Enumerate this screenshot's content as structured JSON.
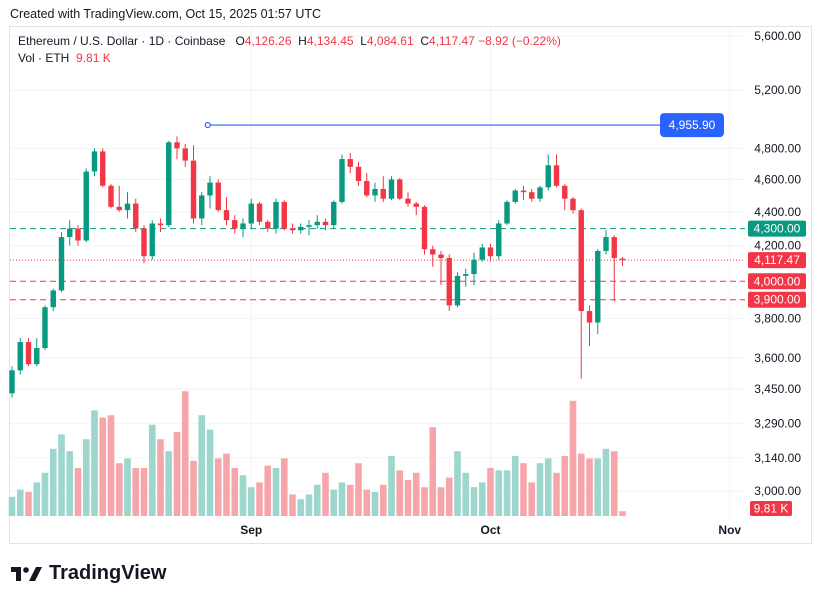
{
  "caption": "Created with TradingView.com, Oct 15, 2025 01:57 UTC",
  "brand": {
    "name": "TradingView"
  },
  "colors": {
    "up": "#089981",
    "down": "#f23645",
    "up_volume": "#9dd6cd",
    "down_volume": "#f6a6ab",
    "line_tool": "#2962ff",
    "grid": "#f0f3fa"
  },
  "legend": {
    "symbol": "Ethereum / U.S. Dollar · 1D · Coinbase",
    "o_label": "O",
    "o_value": "4,126.26",
    "h_label": "H",
    "h_value": "4,134.45",
    "l_label": "L",
    "l_value": "4,084.61",
    "c_label": "C",
    "c_value": "4,117.47",
    "change": "−8.92 (−0.22%)",
    "vol_label": "Vol · ETH",
    "vol_value": "9.81 K"
  },
  "chart_data": {
    "type": "candlestick",
    "x_tick_labels": [
      "Sep",
      "Oct",
      "Nov"
    ],
    "y_tick_labels": [
      "5,600.00",
      "5,200.00",
      "4,800.00",
      "4,600.00",
      "4,400.00",
      "4,200.00",
      "3,800.00",
      "3,600.00",
      "3,450.00",
      "3,290.00",
      "3,140.00",
      "3,000.00"
    ],
    "y_scale": "log",
    "ylim": [
      2960,
      5660
    ],
    "grid": true,
    "ohlc": [
      [
        3430,
        3560,
        3410,
        3540
      ],
      [
        3540,
        3700,
        3520,
        3680
      ],
      [
        3680,
        3700,
        3560,
        3570
      ],
      [
        3570,
        3700,
        3560,
        3650
      ],
      [
        3650,
        3870,
        3640,
        3860
      ],
      [
        3860,
        3960,
        3840,
        3950
      ],
      [
        3950,
        4280,
        3940,
        4250
      ],
      [
        4250,
        4350,
        4200,
        4300
      ],
      [
        4300,
        4320,
        4200,
        4230
      ],
      [
        4230,
        4670,
        4220,
        4650
      ],
      [
        4650,
        4800,
        4620,
        4780
      ],
      [
        4780,
        4800,
        4550,
        4560
      ],
      [
        4560,
        4570,
        4420,
        4430
      ],
      [
        4430,
        4560,
        4400,
        4410
      ],
      [
        4410,
        4520,
        4360,
        4450
      ],
      [
        4450,
        4480,
        4280,
        4300
      ],
      [
        4300,
        4320,
        4100,
        4140
      ],
      [
        4140,
        4350,
        4120,
        4330
      ],
      [
        4330,
        4360,
        4280,
        4320
      ],
      [
        4320,
        4850,
        4310,
        4840
      ],
      [
        4840,
        4880,
        4730,
        4800
      ],
      [
        4800,
        4830,
        4680,
        4720
      ],
      [
        4720,
        4820,
        4330,
        4360
      ],
      [
        4360,
        4520,
        4320,
        4500
      ],
      [
        4500,
        4620,
        4420,
        4580
      ],
      [
        4580,
        4600,
        4400,
        4410
      ],
      [
        4410,
        4490,
        4320,
        4350
      ],
      [
        4350,
        4380,
        4270,
        4300
      ],
      [
        4300,
        4360,
        4250,
        4330
      ],
      [
        4330,
        4480,
        4300,
        4450
      ],
      [
        4450,
        4460,
        4320,
        4340
      ],
      [
        4340,
        4350,
        4280,
        4300
      ],
      [
        4300,
        4480,
        4270,
        4460
      ],
      [
        4460,
        4470,
        4290,
        4300
      ],
      [
        4300,
        4330,
        4270,
        4290
      ],
      [
        4290,
        4330,
        4270,
        4310
      ],
      [
        4310,
        4350,
        4260,
        4320
      ],
      [
        4320,
        4380,
        4300,
        4340
      ],
      [
        4340,
        4360,
        4290,
        4320
      ],
      [
        4320,
        4470,
        4300,
        4460
      ],
      [
        4460,
        4760,
        4450,
        4730
      ],
      [
        4730,
        4770,
        4640,
        4680
      ],
      [
        4680,
        4710,
        4560,
        4590
      ],
      [
        4590,
        4640,
        4490,
        4500
      ],
      [
        4500,
        4580,
        4460,
        4540
      ],
      [
        4540,
        4620,
        4460,
        4480
      ],
      [
        4480,
        4620,
        4470,
        4600
      ],
      [
        4600,
        4610,
        4470,
        4480
      ],
      [
        4480,
        4520,
        4430,
        4450
      ],
      [
        4450,
        4460,
        4380,
        4430
      ],
      [
        4430,
        4440,
        4150,
        4180
      ],
      [
        4180,
        4200,
        4080,
        4150
      ],
      [
        4150,
        4170,
        3980,
        4130
      ],
      [
        4130,
        4150,
        3840,
        3870
      ],
      [
        3870,
        4050,
        3860,
        4030
      ],
      [
        4030,
        4070,
        3970,
        4040
      ],
      [
        4040,
        4160,
        3980,
        4120
      ],
      [
        4120,
        4210,
        4110,
        4190
      ],
      [
        4190,
        4210,
        4110,
        4140
      ],
      [
        4140,
        4350,
        4120,
        4330
      ],
      [
        4330,
        4470,
        4320,
        4460
      ],
      [
        4460,
        4540,
        4450,
        4530
      ],
      [
        4530,
        4560,
        4470,
        4520
      ],
      [
        4520,
        4540,
        4460,
        4480
      ],
      [
        4480,
        4560,
        4460,
        4550
      ],
      [
        4550,
        4760,
        4530,
        4690
      ],
      [
        4690,
        4760,
        4550,
        4560
      ],
      [
        4560,
        4570,
        4410,
        4480
      ],
      [
        4480,
        4490,
        4390,
        4410
      ],
      [
        4410,
        4420,
        3500,
        3840
      ],
      [
        3840,
        3870,
        3660,
        3780
      ],
      [
        3780,
        4180,
        3720,
        4170
      ],
      [
        4170,
        4290,
        4150,
        4250
      ],
      [
        4250,
        4260,
        3890,
        4130
      ],
      [
        4126.26,
        4134.45,
        4084.61,
        4117.47
      ]
    ],
    "volume": [
      8,
      11,
      10,
      14,
      18,
      28,
      34,
      27,
      20,
      32,
      44,
      41,
      42,
      22,
      24,
      20,
      20,
      38,
      32,
      27,
      35,
      52,
      23,
      42,
      36,
      24,
      26,
      20,
      17,
      12,
      14,
      21,
      20,
      24,
      9,
      7,
      9,
      13,
      18,
      11,
      14,
      13,
      22,
      11,
      10,
      13,
      25,
      19,
      15,
      18,
      12,
      37,
      12,
      16,
      27,
      18,
      12,
      14,
      20,
      19,
      19,
      25,
      22,
      14,
      22,
      24,
      18,
      25,
      48,
      26,
      24,
      24,
      28,
      27,
      2
    ],
    "volume_max_label": "9.81 K",
    "horizontal_levels": [
      {
        "price": 4300,
        "label": "4,300.00",
        "color": "#089981"
      },
      {
        "price": 4117.47,
        "label": "4,117.47",
        "color": "#f23645"
      },
      {
        "price": 4000,
        "label": "4,000.00",
        "color": "#f23645"
      },
      {
        "price": 3900,
        "label": "3,900.00",
        "color": "#f23645"
      }
    ],
    "trend_line": {
      "price": 4955.9,
      "label": "4,955.90",
      "start_index": 23
    }
  }
}
